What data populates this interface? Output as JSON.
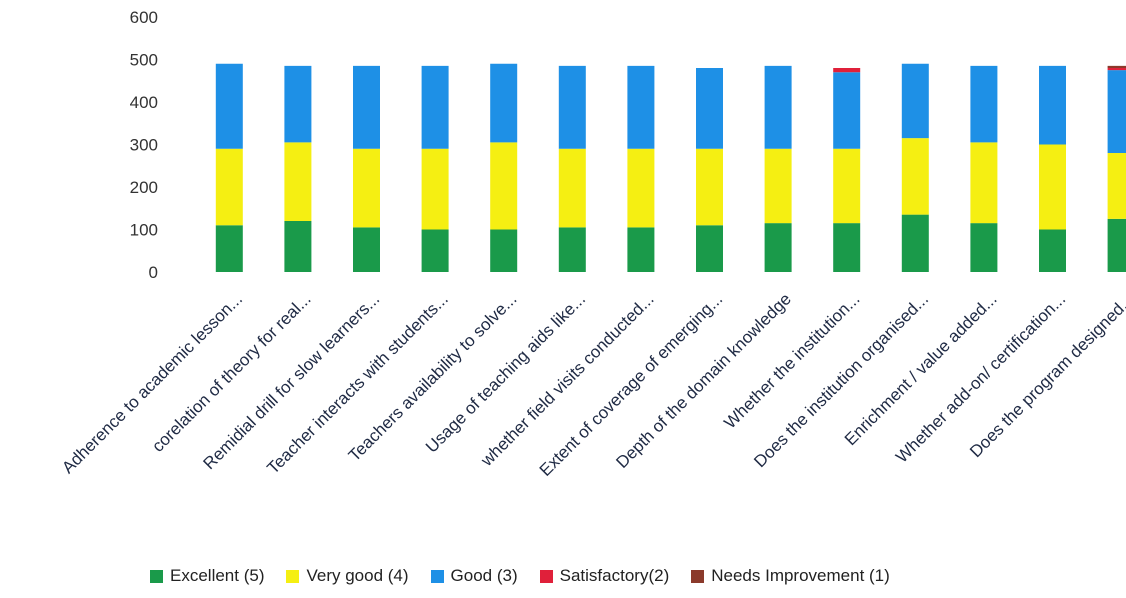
{
  "chart_data": {
    "type": "bar",
    "stacked": true,
    "title": "",
    "xlabel": "",
    "ylabel": "",
    "ylim": [
      0,
      600
    ],
    "y_ticks": [
      "0",
      "100",
      "200",
      "300",
      "400",
      "500",
      "600"
    ],
    "grid": false,
    "legend_position": "bottom",
    "categories": [
      "Adherence to academic lesson...",
      "corelation of theory for real...",
      "Remidial drill for slow learners...",
      "Teacher interacts with students...",
      "Teachers availability to solve...",
      "Usage of teaching aids like...",
      "whether field visits conducted...",
      "Extent of coverage of emerging...",
      "Depth of the domain knowledge",
      "Whether the institution...",
      "Does the institution organised...",
      "Enrichment / value added...",
      "Whether add-on/ certification...",
      "Does the program designed..."
    ],
    "series": [
      {
        "name": "Excellent (5)",
        "color": "#1a9a4a",
        "values": [
          110,
          120,
          105,
          100,
          100,
          105,
          105,
          110,
          115,
          115,
          135,
          115,
          100,
          125
        ]
      },
      {
        "name": "Very good (4)",
        "color": "#f5ef12",
        "values": [
          180,
          185,
          185,
          190,
          205,
          185,
          185,
          180,
          175,
          175,
          180,
          190,
          200,
          155
        ]
      },
      {
        "name": "Good (3)",
        "color": "#1e90e6",
        "values": [
          200,
          180,
          195,
          195,
          185,
          195,
          195,
          190,
          195,
          180,
          175,
          180,
          185,
          195
        ]
      },
      {
        "name": "Satisfactory(2)",
        "color": "#e0203a",
        "values": [
          0,
          0,
          0,
          0,
          0,
          0,
          0,
          0,
          0,
          10,
          0,
          0,
          0,
          5
        ]
      },
      {
        "name": "Needs Improvement (1)",
        "color": "#8b3a2b",
        "values": [
          0,
          0,
          0,
          0,
          0,
          0,
          0,
          0,
          0,
          0,
          0,
          0,
          0,
          5
        ]
      }
    ]
  }
}
